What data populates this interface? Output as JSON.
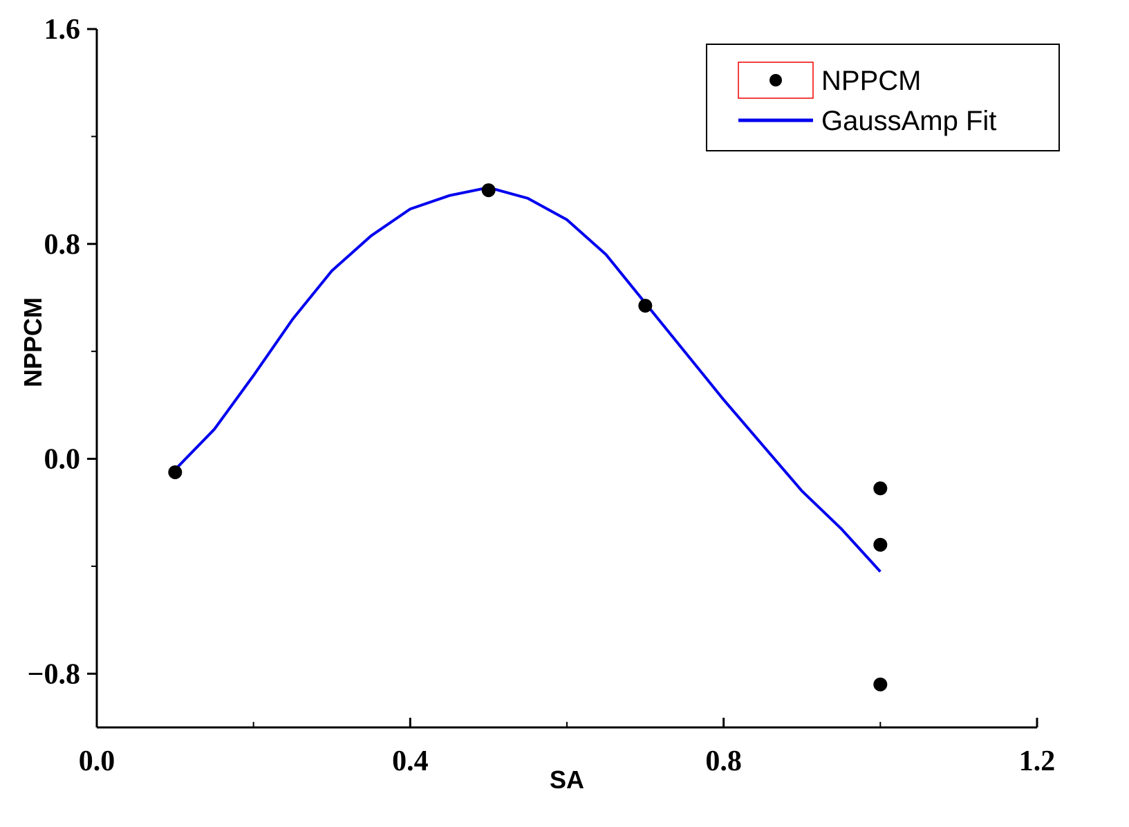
{
  "chart_data": {
    "type": "scatter_fit",
    "x_label": "SA",
    "y_label": "NPPCM",
    "xlim": [
      0,
      1.2
    ],
    "ylim": [
      -1.0,
      1.6
    ],
    "xticks": [
      {
        "value": 0,
        "label": "0.0"
      },
      0.4,
      0.8,
      1.2
    ],
    "xminorticks": [
      0.2,
      0.6,
      1.0
    ],
    "yticks": [
      {
        "value": -0.8,
        "label": "−0.8"
      },
      {
        "value": 0,
        "label": "0.0"
      },
      0.8,
      1.6
    ],
    "yminorticks": [
      -0.4,
      0.4,
      1.2
    ],
    "legend": "upper right",
    "series": [
      {
        "name": "NPPCM",
        "color": "#000000",
        "kind": "points",
        "x": [
          0.1,
          0.5,
          0.7,
          1.0,
          1.0,
          1.0
        ],
        "values": [
          -0.05,
          1.0,
          0.57,
          -0.11,
          -0.32,
          -0.84
        ]
      },
      {
        "name": "GaussAmp Fit",
        "color": "#0000ee",
        "kind": "line",
        "x": [
          0.1,
          0.15,
          0.2,
          0.25,
          0.3,
          0.35,
          0.4,
          0.45,
          0.5,
          0.55,
          0.6,
          0.65,
          0.7,
          0.75,
          0.8,
          0.85,
          0.9,
          0.95,
          1.0
        ],
        "values": [
          -0.04,
          0.11,
          0.31,
          0.52,
          0.7,
          0.83,
          0.93,
          0.98,
          1.01,
          0.97,
          0.89,
          0.76,
          0.58,
          0.4,
          0.22,
          0.05,
          -0.12,
          -0.26,
          -0.42
        ]
      }
    ]
  }
}
